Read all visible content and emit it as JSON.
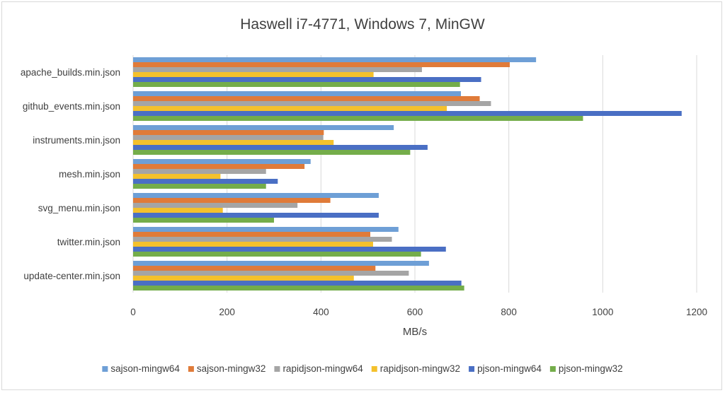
{
  "chart_data": {
    "type": "bar",
    "orientation": "horizontal",
    "title": "Haswell i7-4771, Windows 7, MinGW",
    "xlabel": "MB/s",
    "ylabel": "",
    "xlim": [
      0,
      1200
    ],
    "xticks": [
      0,
      200,
      400,
      600,
      800,
      1000,
      1200
    ],
    "grid": true,
    "legend_position": "bottom",
    "categories": [
      "apache_builds.min.json",
      "github_events.min.json",
      "instruments.min.json",
      "mesh.min.json",
      "svg_menu.min.json",
      "twitter.min.json",
      "update-center.min.json"
    ],
    "series": [
      {
        "name": "sajson-mingw64",
        "color": "#6e9fd6",
        "values": [
          858,
          698,
          555,
          378,
          523,
          565,
          630
        ]
      },
      {
        "name": "sajson-mingw32",
        "color": "#e07b39",
        "values": [
          802,
          738,
          406,
          365,
          420,
          505,
          516
        ]
      },
      {
        "name": "rapidjson-mingw64",
        "color": "#a5a5a5",
        "values": [
          615,
          762,
          405,
          283,
          350,
          551,
          587
        ]
      },
      {
        "name": "rapidjson-mingw32",
        "color": "#f4c12c",
        "values": [
          512,
          668,
          427,
          186,
          191,
          511,
          470
        ]
      },
      {
        "name": "pjson-mingw64",
        "color": "#4a6fc4",
        "values": [
          741,
          1168,
          627,
          308,
          523,
          666,
          699
        ]
      },
      {
        "name": "pjson-mingw32",
        "color": "#74ad4a",
        "values": [
          696,
          958,
          590,
          283,
          300,
          613,
          705
        ]
      }
    ]
  }
}
